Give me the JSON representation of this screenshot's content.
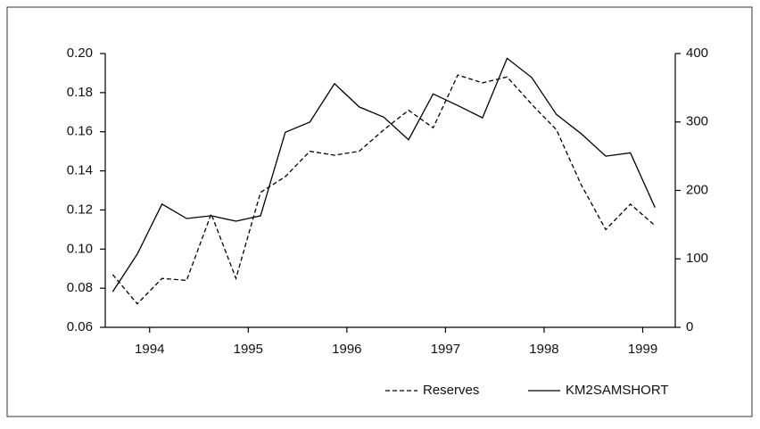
{
  "chart_data": {
    "type": "line",
    "x": [
      1993.625,
      1993.875,
      1994.125,
      1994.375,
      1994.625,
      1994.875,
      1995.125,
      1995.375,
      1995.625,
      1995.875,
      1996.125,
      1996.375,
      1996.625,
      1996.875,
      1997.125,
      1997.375,
      1997.625,
      1997.875,
      1998.125,
      1998.375,
      1998.625,
      1998.875,
      1999.125
    ],
    "xlim": [
      1993.55,
      1999.33
    ],
    "xticks": [
      1994,
      1995,
      1996,
      1997,
      1998,
      1999
    ],
    "ylim": [
      0.06,
      0.2
    ],
    "yticks": [
      {
        "value": 0.06,
        "label": "0.06"
      },
      {
        "value": 0.08,
        "label": "0.08"
      },
      {
        "value": 0.1,
        "label": "0.10"
      },
      {
        "value": 0.12,
        "label": "0.12"
      },
      {
        "value": 0.14,
        "label": "0.14"
      },
      {
        "value": 0.16,
        "label": "0.16"
      },
      {
        "value": 0.18,
        "label": "0.18"
      },
      {
        "value": 0.2,
        "label": "0.20"
      }
    ],
    "y2lim": [
      0,
      400
    ],
    "y2ticks": [
      0,
      100,
      200,
      300,
      400
    ],
    "series": [
      {
        "name": "Reserves",
        "color": "#000000",
        "dash": true,
        "values": [
          0.087,
          0.072,
          0.085,
          0.084,
          0.118,
          0.085,
          0.129,
          0.137,
          0.15,
          0.148,
          0.15,
          0.161,
          0.171,
          0.162,
          0.189,
          0.185,
          0.188,
          0.174,
          0.161,
          0.133,
          0.11,
          0.123,
          0.112
        ]
      },
      {
        "name": "KM2SAMSHORT",
        "color": "#000000",
        "dash": false,
        "axis": "y2",
        "values": [
          52,
          107,
          180,
          159,
          163,
          155,
          163,
          285,
          300,
          356,
          322,
          307,
          274,
          341,
          324,
          306,
          393,
          365,
          311,
          283,
          250,
          255,
          175
        ]
      }
    ],
    "legend": "bottom-right"
  }
}
